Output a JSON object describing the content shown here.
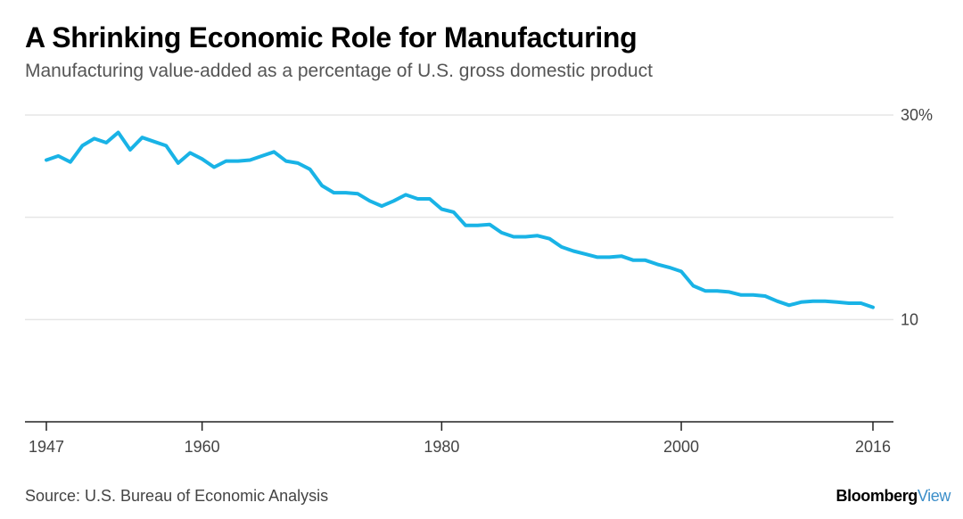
{
  "title": "A Shrinking Economic Role for Manufacturing",
  "subtitle": "Manufacturing value-added as a percentage of U.S. gross domestic product",
  "source": "Source: U.S. Bureau of Economic Analysis",
  "brand": {
    "part1": "Bloomberg",
    "part2": "View"
  },
  "colors": {
    "line": "#19b3e6",
    "grid": "#e6e6e6",
    "axis": "#222222",
    "brand_accent": "#3b8ec9"
  },
  "chart_data": {
    "type": "line",
    "title": "A Shrinking Economic Role for Manufacturing",
    "subtitle": "Manufacturing value-added as a percentage of U.S. gross domestic product",
    "xlabel": "",
    "ylabel": "",
    "xlim": [
      1947,
      2016
    ],
    "ylim": [
      0,
      30
    ],
    "x_ticks": [
      1947,
      1960,
      1980,
      2000,
      2016
    ],
    "x_tick_labels": [
      "1947",
      "1960",
      "1980",
      "2000",
      "2016"
    ],
    "y_ticks": [
      10,
      20,
      30
    ],
    "y_tick_labels": [
      "10",
      "",
      "30%"
    ],
    "grid": true,
    "legend": "none",
    "series": [
      {
        "x": [
          1947,
          1948,
          1949,
          1950,
          1951,
          1952,
          1953,
          1954,
          1955,
          1956,
          1957,
          1958,
          1959,
          1960,
          1961,
          1962,
          1963,
          1964,
          1965,
          1966,
          1967,
          1968,
          1969,
          1970,
          1971,
          1972,
          1973,
          1974,
          1975,
          1976,
          1977,
          1978,
          1979,
          1980,
          1981,
          1982,
          1983,
          1984,
          1985,
          1986,
          1987,
          1988,
          1989,
          1990,
          1991,
          1992,
          1993,
          1994,
          1995,
          1996,
          1997,
          1998,
          1999,
          2000,
          2001,
          2002,
          2003,
          2004,
          2005,
          2006,
          2007,
          2008,
          2009,
          2010,
          2011,
          2012,
          2013,
          2014,
          2015,
          2016
        ],
        "values": [
          25.6,
          26.0,
          25.4,
          27.0,
          27.7,
          27.3,
          28.3,
          26.6,
          27.8,
          27.4,
          27.0,
          25.3,
          26.3,
          25.7,
          24.9,
          25.5,
          25.5,
          25.6,
          26.0,
          26.4,
          25.5,
          25.3,
          24.7,
          23.1,
          22.4,
          22.4,
          22.3,
          21.6,
          21.1,
          21.6,
          22.2,
          21.8,
          21.8,
          20.8,
          20.5,
          19.2,
          19.2,
          19.3,
          18.5,
          18.1,
          18.1,
          18.2,
          17.9,
          17.1,
          16.7,
          16.4,
          16.1,
          16.1,
          16.2,
          15.8,
          15.8,
          15.4,
          15.1,
          14.7,
          13.3,
          12.8,
          12.8,
          12.7,
          12.4,
          12.4,
          12.3,
          11.8,
          11.4,
          11.7,
          11.8,
          11.8,
          11.7,
          11.6,
          11.6,
          11.2
        ]
      }
    ]
  }
}
